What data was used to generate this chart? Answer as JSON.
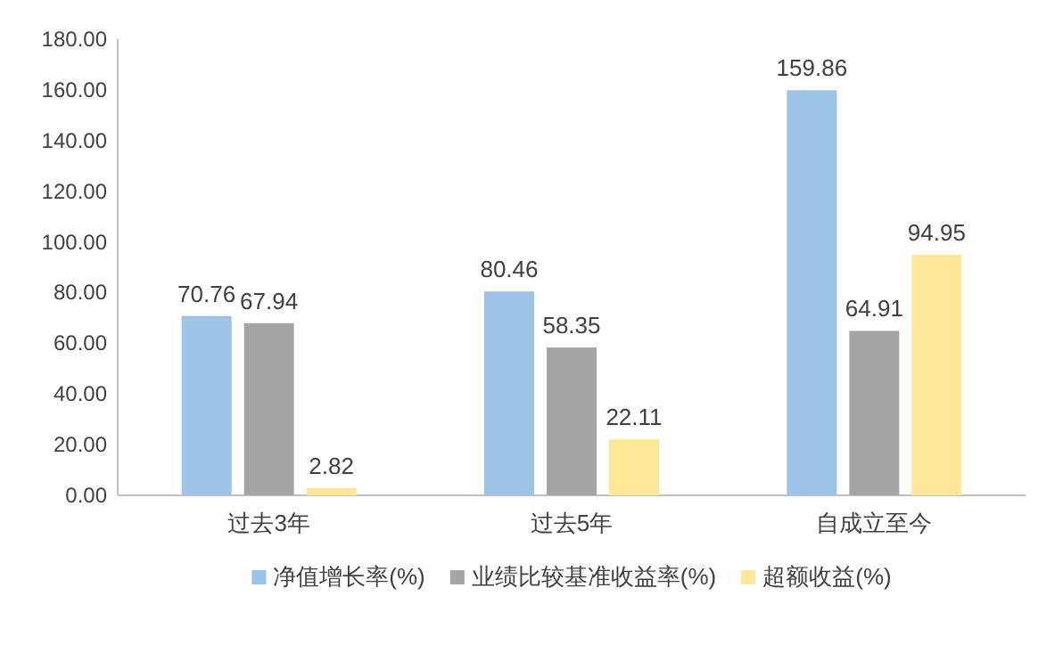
{
  "chart_data": {
    "type": "bar",
    "categories": [
      "过去3年",
      "过去5年",
      "自成立至今"
    ],
    "series": [
      {
        "name": "净值增长率(%)",
        "color": "#9dc3e6",
        "values": [
          70.76,
          80.46,
          159.86
        ]
      },
      {
        "name": "业绩比较基准收益率(%)",
        "color": "#a5a5a5",
        "values": [
          67.94,
          58.35,
          64.91
        ]
      },
      {
        "name": "超额收益(%)",
        "color": "#ffe699",
        "values": [
          2.82,
          22.11,
          94.95
        ]
      }
    ],
    "ylim": [
      0,
      180
    ],
    "yticks": [
      {
        "value": 0,
        "label": "0.00"
      },
      {
        "value": 20,
        "label": "20.00"
      },
      {
        "value": 40,
        "label": "40.00"
      },
      {
        "value": 60,
        "label": "60.00"
      },
      {
        "value": 80,
        "label": "80.00"
      },
      {
        "value": 100,
        "label": "100.00"
      },
      {
        "value": 120,
        "label": "120.00"
      },
      {
        "value": 140,
        "label": "140.00"
      },
      {
        "value": 160,
        "label": "160.00"
      },
      {
        "value": 180,
        "label": "180.00"
      }
    ],
    "data_labels": true,
    "legend": "bottom"
  }
}
